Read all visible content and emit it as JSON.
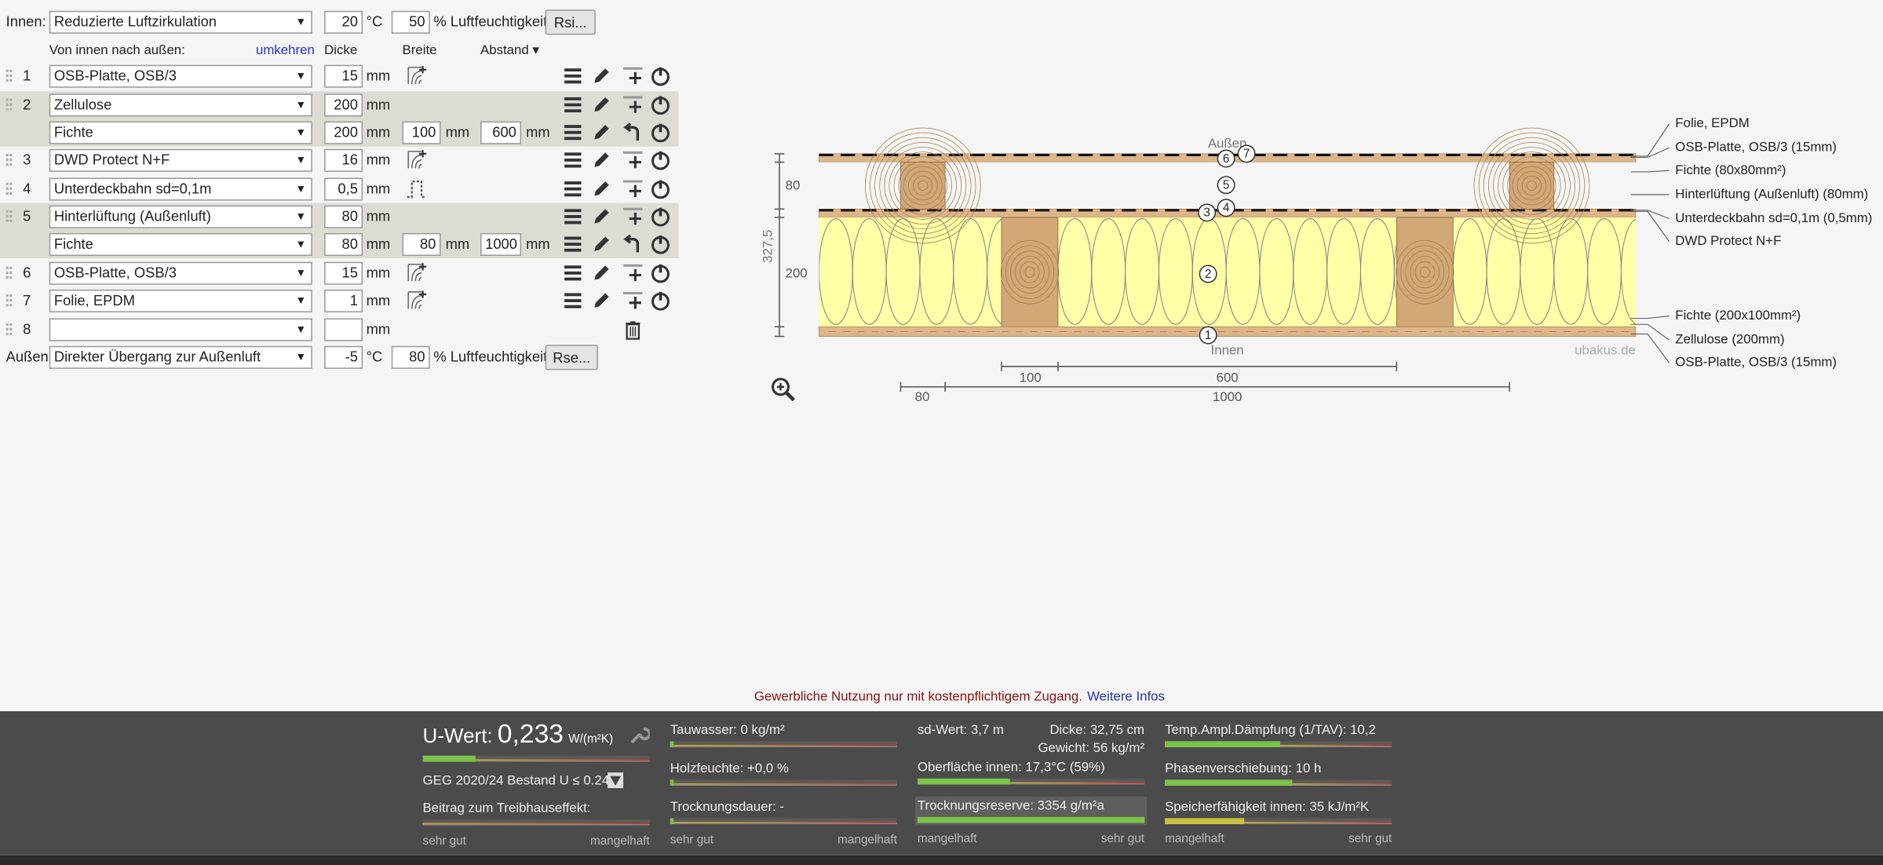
{
  "header": {
    "inner_label": "Innen:",
    "inner_climate": "Reduzierte Luftzirkulation",
    "inner_temp": "20",
    "temp_unit": "°C",
    "inner_humidity": "50",
    "humidity_label": "% Luftfeuchtigkeit",
    "rsi_button": "Rsi..."
  },
  "columns": {
    "direction": "Von innen nach außen:",
    "reverse": "umkehren",
    "thickness": "Dicke",
    "width": "Breite",
    "spacing": "Abstand ▾",
    "unit": "mm"
  },
  "layers": [
    {
      "number": "1",
      "material": "OSB-Platte, OSB/3",
      "thickness": "15"
    },
    {
      "number": "2",
      "material": "Zellulose",
      "thickness": "200"
    },
    {
      "material": "Fichte",
      "thickness": "200",
      "width": "100",
      "spacing": "600"
    },
    {
      "number": "3",
      "material": "DWD Protect N+F",
      "thickness": "16"
    },
    {
      "number": "4",
      "material": "Unterdeckbahn sd=0,1m",
      "thickness": "0,5"
    },
    {
      "number": "5",
      "material": "Hinterlüftung (Außenluft)",
      "thickness": "80"
    },
    {
      "material": "Fichte",
      "thickness": "80",
      "width": "80",
      "spacing": "1000"
    },
    {
      "number": "6",
      "material": "OSB-Platte, OSB/3",
      "thickness": "15"
    },
    {
      "number": "7",
      "material": "Folie, EPDM",
      "thickness": "1"
    },
    {
      "number": "8"
    }
  ],
  "footer_row": {
    "outer_label": "Außen:",
    "outer_climate": "Direkter Übergang zur Außenluft",
    "outer_temp": "-5",
    "temp_unit": "°C",
    "outer_humidity": "80",
    "humidity_label": "% Luftfeuchtigkeit",
    "rse_button": "Rse..."
  },
  "diagram": {
    "outside": "Außen",
    "inside": "Innen",
    "watermark": "ubakus.de",
    "dims_left": [
      "80",
      "200",
      "327,5"
    ],
    "dims_bottom": [
      "100",
      "600",
      "80",
      "1000"
    ],
    "markers": [
      "1",
      "2",
      "3",
      "4",
      "5",
      "6",
      "7"
    ],
    "legend": [
      "Folie, EPDM",
      "OSB-Platte, OSB/3 (15mm)",
      "Fichte (80x80mm²)",
      "Hinterlüftung (Außenluft) (80mm)",
      "Unterdeckbahn sd=0,1m (0,5mm)",
      "DWD Protect N+F",
      "Fichte (200x100mm²)",
      "Zellulose (200mm)",
      "OSB-Platte, OSB/3 (15mm)"
    ]
  },
  "notice": {
    "text": "Gewerbliche Nutzung nur mit kostenpflichtigem Zugang.",
    "link": "Weitere Infos"
  },
  "results": {
    "u_label": "U-Wert:",
    "u_value": "0,233",
    "u_unit": "W/(m²K)",
    "geg": "GEG 2020/24 Bestand U ≤ 0.24",
    "greenhouse": "Beitrag zum Treibhauseffekt:",
    "tauwasser": "Tauwasser: 0 kg/m²",
    "holzfeuchte": "Holzfeuchte: +0,0 %",
    "trocknungsdauer": "Trocknungsdauer: -",
    "sd": "sd-Wert: 3,7 m",
    "dicke": "Dicke: 32,75 cm",
    "gewicht": "Gewicht: 56 kg/m²",
    "oberflaeche": "Oberfläche innen: 17,3°C (59%)",
    "trocknungsreserve": "Trocknungsreserve: 3354 g/m²a",
    "tav": "Temp.Ampl.Dämpfung (1/TAV): 10,2",
    "phase": "Phasenverschiebung: 10 h",
    "speicher": "Speicherfähigkeit innen: 35 kJ/m²K",
    "good": "sehr gut",
    "bad": "mangelhaft"
  }
}
